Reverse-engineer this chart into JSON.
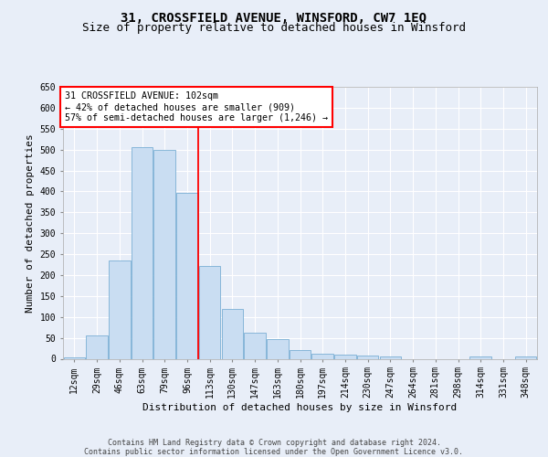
{
  "title": "31, CROSSFIELD AVENUE, WINSFORD, CW7 1EQ",
  "subtitle": "Size of property relative to detached houses in Winsford",
  "xlabel": "Distribution of detached houses by size in Winsford",
  "ylabel": "Number of detached properties",
  "categories": [
    "12sqm",
    "29sqm",
    "46sqm",
    "63sqm",
    "79sqm",
    "96sqm",
    "113sqm",
    "130sqm",
    "147sqm",
    "163sqm",
    "180sqm",
    "197sqm",
    "214sqm",
    "230sqm",
    "247sqm",
    "264sqm",
    "281sqm",
    "298sqm",
    "314sqm",
    "331sqm",
    "348sqm"
  ],
  "values": [
    3,
    55,
    235,
    505,
    500,
    397,
    222,
    120,
    62,
    46,
    20,
    12,
    10,
    8,
    6,
    0,
    0,
    0,
    6,
    0,
    6
  ],
  "bar_color": "#c9ddf2",
  "bar_edge_color": "#7aafd4",
  "vline_color": "red",
  "vline_pos": 4.5,
  "annotation_line1": "31 CROSSFIELD AVENUE: 102sqm",
  "annotation_line2": "← 42% of detached houses are smaller (909)",
  "annotation_line3": "57% of semi-detached houses are larger (1,246) →",
  "footnote1": "Contains HM Land Registry data © Crown copyright and database right 2024.",
  "footnote2": "Contains public sector information licensed under the Open Government Licence v3.0.",
  "ylim_max": 650,
  "yticks": [
    0,
    50,
    100,
    150,
    200,
    250,
    300,
    350,
    400,
    450,
    500,
    550,
    600,
    650
  ],
  "background_color": "#e8eef8",
  "grid_color": "#ffffff",
  "title_fontsize": 10,
  "subtitle_fontsize": 9
}
